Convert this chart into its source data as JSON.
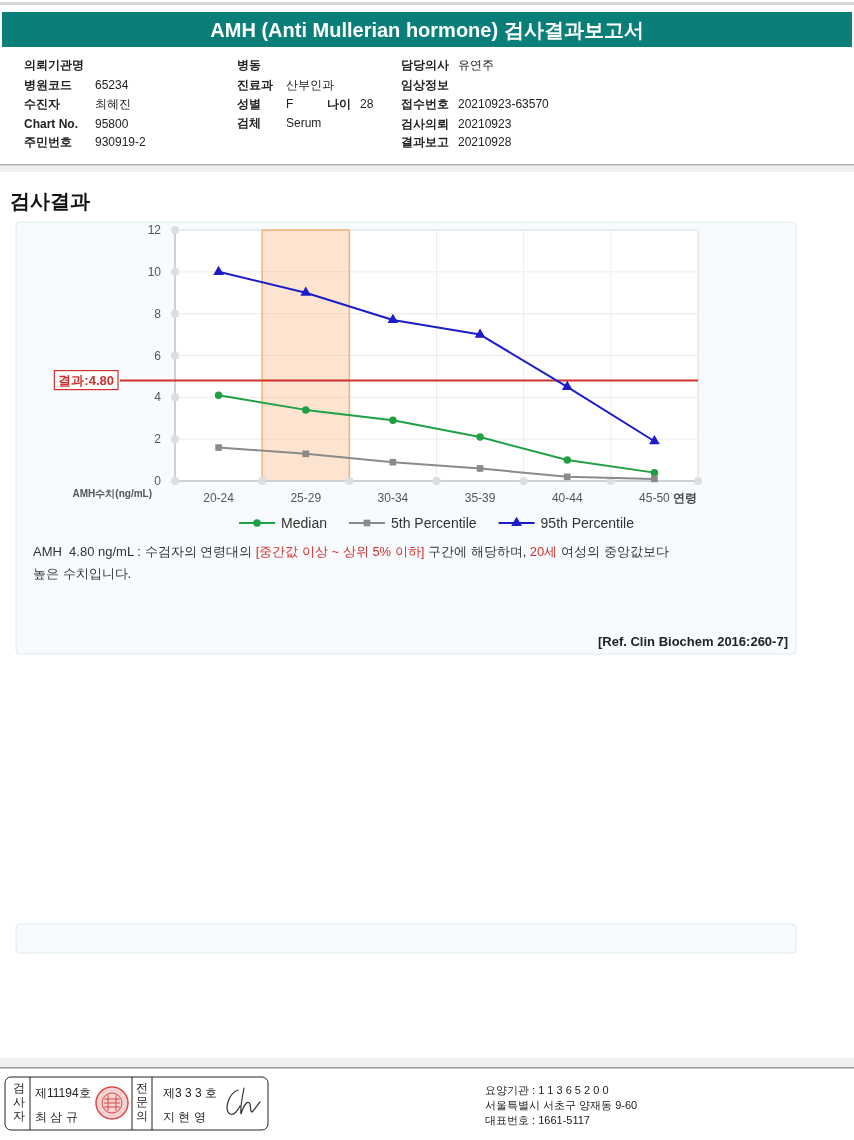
{
  "chart_data": {
    "type": "line",
    "title": "AMH (Anti Mullerian hormone) 검사결과보고서",
    "subtitle": "검사결과",
    "xlabel": "연령",
    "ylabel": "AMH수치(ng/mL)",
    "categories": [
      "20-24",
      "25-29",
      "30-34",
      "35-39",
      "40-44",
      "45-50"
    ],
    "series": [
      {
        "name": "Median",
        "color": "#1fa045",
        "marker": "circle",
        "values": [
          4.1,
          3.4,
          2.9,
          2.1,
          1.0,
          0.4
        ]
      },
      {
        "name": "5th Percentile",
        "color": "#8a8a8a",
        "marker": "square",
        "values": [
          1.6,
          1.3,
          0.9,
          0.6,
          0.2,
          0.1
        ]
      },
      {
        "name": "95th Percentile",
        "color": "#1c1cc8",
        "marker": "triangle",
        "values": [
          10.0,
          9.0,
          7.7,
          7.0,
          4.5,
          1.9
        ]
      }
    ],
    "ylim": [
      0,
      12
    ],
    "yticks": [
      0,
      2,
      4,
      6,
      8,
      10,
      12
    ],
    "grid": true,
    "legend": "bottom",
    "line_style": "solid",
    "ref_lines": [
      {
        "axis": "y",
        "value": 4.8,
        "label": "결과:4.80",
        "color": "#d0312d"
      }
    ],
    "bands": [
      {
        "axis": "x",
        "from": "25-29",
        "to": "25-29",
        "color": "#f5b27a"
      }
    ],
    "annotations": [
      "의뢰기관명",
      "병동",
      "담당의사",
      "유연주",
      "병원코드",
      "65234",
      "진료과",
      "산부인과",
      "임상정보",
      "수진자",
      "최혜진",
      "성별",
      "F",
      "나이",
      "28",
      "접수번호",
      "20210923-63570",
      "Chart No.",
      "95800",
      "검체",
      "Serum",
      "검사의뢰",
      "20210923",
      "주민번호",
      "930919-2",
      "결과보고",
      "20210928",
      "AMH  4.80 ng/mL : 수검자의 연령대의 ",
      "[중간값 이상 ~ 상위 5% 이하]",
      " 구간에 해당하며, ",
      "20세",
      " 여성의 중앙값보다",
      "높은 수치입니다.",
      "[Ref. Clin Biochem 2016:260-7]",
      "검사자",
      "제11194호",
      "최 삼 규",
      "전문의",
      "제3 3 3 호",
      "지 현 영",
      "요양기관 : 1 1 3 6 5 2 0 0",
      "서울특별시 서초구 양재동 9-60",
      "대표번호 : 1661-5117"
    ]
  }
}
